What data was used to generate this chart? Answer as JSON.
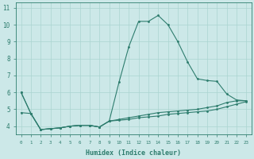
{
  "xlabel": "Humidex (Indice chaleur)",
  "background_color": "#cce8e8",
  "line_color": "#2e7d6e",
  "xlim_min": -0.5,
  "xlim_max": 23.5,
  "ylim_min": 3.5,
  "ylim_max": 11.3,
  "xticks": [
    0,
    1,
    2,
    3,
    4,
    5,
    6,
    7,
    8,
    9,
    10,
    11,
    12,
    13,
    14,
    15,
    16,
    17,
    18,
    19,
    20,
    21,
    22,
    23
  ],
  "yticks": [
    4,
    5,
    6,
    7,
    8,
    9,
    10,
    11
  ],
  "series1_x": [
    0,
    1,
    2,
    3,
    4,
    5,
    6,
    7,
    8,
    9,
    10,
    11,
    12,
    13,
    14,
    15,
    16,
    17,
    18,
    19,
    20,
    21,
    22,
    23
  ],
  "series1_y": [
    6.0,
    4.75,
    3.8,
    3.85,
    3.9,
    4.0,
    4.05,
    4.05,
    3.95,
    4.3,
    4.4,
    4.5,
    4.6,
    4.7,
    4.8,
    4.85,
    4.9,
    4.95,
    5.0,
    5.1,
    5.2,
    5.4,
    5.5,
    5.5
  ],
  "series2_x": [
    0,
    1,
    2,
    3,
    4,
    5,
    6,
    7,
    8,
    9,
    10,
    11,
    12,
    13,
    14,
    15,
    16,
    17,
    18,
    19,
    20,
    21,
    22,
    23
  ],
  "series2_y": [
    6.0,
    4.75,
    3.8,
    3.85,
    3.9,
    4.0,
    4.05,
    4.05,
    3.95,
    4.3,
    6.6,
    8.7,
    10.2,
    10.2,
    10.55,
    10.0,
    9.0,
    7.8,
    6.8,
    6.7,
    6.65,
    5.9,
    5.55,
    5.5
  ],
  "series3_x": [
    0,
    1,
    2,
    3,
    4,
    5,
    6,
    7,
    8,
    9,
    10,
    11,
    12,
    13,
    14,
    15,
    16,
    17,
    18,
    19,
    20,
    21,
    22,
    23
  ],
  "series3_y": [
    4.8,
    4.75,
    3.8,
    3.85,
    3.9,
    4.0,
    4.05,
    4.05,
    3.95,
    4.3,
    4.35,
    4.4,
    4.5,
    4.55,
    4.6,
    4.7,
    4.75,
    4.8,
    4.85,
    4.9,
    5.0,
    5.15,
    5.3,
    5.45
  ],
  "grid_color": "#aad4d0",
  "font_color": "#2e7d6e",
  "xlabel_fontsize": 6.0,
  "xtick_fontsize": 4.2,
  "ytick_fontsize": 5.5
}
